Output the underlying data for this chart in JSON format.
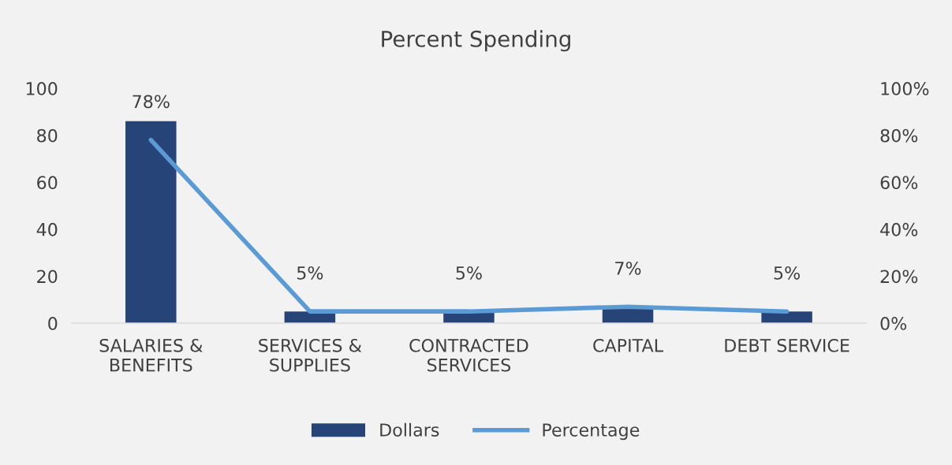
{
  "chart_data": {
    "type": "bar",
    "title": "Percent Spending",
    "categories": [
      "SALARIES &\nBENEFITS",
      "SERVICES &\nSUPPLIES",
      "CONTRACTED\nSERVICES",
      "CAPITAL",
      "DEBT SERVICE"
    ],
    "series": [
      {
        "name": "Dollars",
        "type": "bar",
        "color": "#264478",
        "values": [
          86,
          5,
          5,
          7,
          5
        ]
      },
      {
        "name": "Percentage",
        "type": "line",
        "axis": "y2",
        "color": "#5b9bd5",
        "values": [
          78,
          5,
          5,
          7,
          5
        ],
        "value_labels": [
          "78%",
          "5%",
          "5%",
          "7%",
          "5%"
        ]
      }
    ],
    "ylim": [
      0,
      100
    ],
    "yticks": [
      0,
      20,
      40,
      60,
      80,
      100
    ],
    "y2lim": [
      0,
      100
    ],
    "y2ticks": [
      {
        "value": 0,
        "label": "0%"
      },
      {
        "value": 20,
        "label": "20%"
      },
      {
        "value": 40,
        "label": "40%"
      },
      {
        "value": 60,
        "label": "60%"
      },
      {
        "value": 80,
        "label": "80%"
      },
      {
        "value": 100,
        "label": "100%"
      }
    ],
    "grid": false,
    "legend": "bottom",
    "marker": "none",
    "line_style": "solid"
  }
}
